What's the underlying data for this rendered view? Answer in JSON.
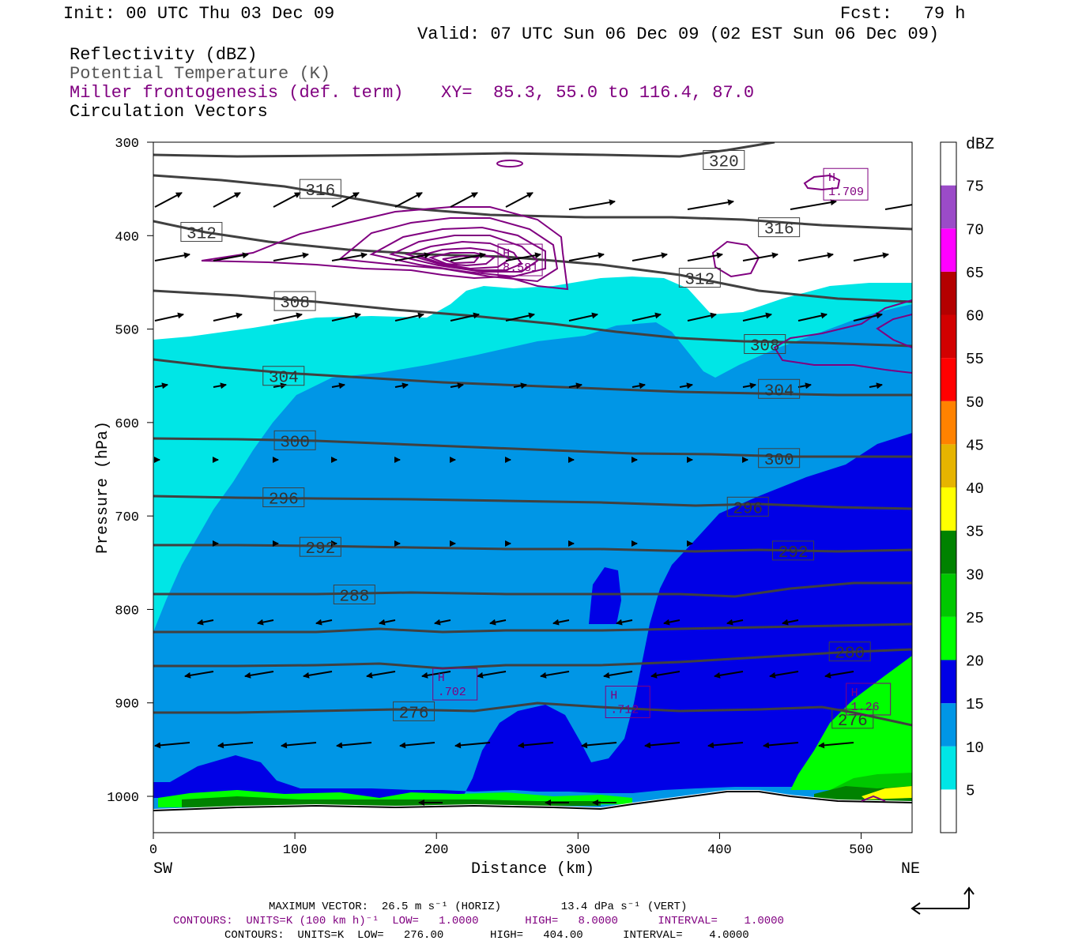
{
  "header": {
    "init": "Init: 00 UTC Thu 03 Dec 09",
    "fcst": "Fcst:   79 h",
    "valid": "Valid: 07 UTC Sun 06 Dec 09 (02 EST Sun 06 Dec 09)",
    "fields": [
      "Reflectivity (dBZ)",
      "Potential Temperature (K)",
      "Miller frontogenesis (def. term)",
      "Circulation Vectors"
    ],
    "xy": "XY=  85.3, 55.0 to 116.4, 87.0"
  },
  "axes": {
    "ylabel": "Pressure (hPa)",
    "xlabel": "Distance (km)",
    "x_left_label": "SW",
    "x_right_label": "NE",
    "yticks": [
      "300",
      "400",
      "500",
      "600",
      "700",
      "800",
      "900",
      "1000"
    ],
    "xticks": [
      "0",
      "100",
      "200",
      "300",
      "400",
      "500"
    ]
  },
  "colorbar": {
    "title": "dBZ",
    "labels": [
      "5",
      "10",
      "15",
      "20",
      "25",
      "30",
      "35",
      "40",
      "45",
      "50",
      "55",
      "60",
      "65",
      "70",
      "75"
    ],
    "colors": [
      "#ffffff",
      "#00e6e6",
      "#0096e6",
      "#0000e6",
      "#00ff00",
      "#00c800",
      "#008200",
      "#ffff00",
      "#e6b400",
      "#ff8200",
      "#ff0000",
      "#d20000",
      "#b40000",
      "#ff00ff",
      "#9b4bc8",
      "#ffffff"
    ]
  },
  "chart_data": {
    "type": "contour",
    "x_unit": "km",
    "y_unit": "hPa",
    "xlim": [
      0,
      536
    ],
    "ylim": [
      300,
      1040
    ],
    "theta_labels": [
      {
        "text": "320",
        "x": 403,
        "p": 319
      },
      {
        "text": "316",
        "x": 118,
        "p": 350
      },
      {
        "text": "316",
        "x": 442,
        "p": 391
      },
      {
        "text": "312",
        "x": 34,
        "p": 396
      },
      {
        "text": "312",
        "x": 386,
        "p": 445
      },
      {
        "text": "308",
        "x": 100,
        "p": 470
      },
      {
        "text": "308",
        "x": 432,
        "p": 516
      },
      {
        "text": "304",
        "x": 92,
        "p": 550
      },
      {
        "text": "304",
        "x": 442,
        "p": 564
      },
      {
        "text": "300",
        "x": 100,
        "p": 619
      },
      {
        "text": "300",
        "x": 442,
        "p": 638
      },
      {
        "text": "296",
        "x": 92,
        "p": 680
      },
      {
        "text": "296",
        "x": 420,
        "p": 690
      },
      {
        "text": "292",
        "x": 118,
        "p": 733
      },
      {
        "text": "292",
        "x": 452,
        "p": 737
      },
      {
        "text": "288",
        "x": 142,
        "p": 784
      },
      {
        "text": "280",
        "x": 492,
        "p": 845
      },
      {
        "text": "276",
        "x": 184,
        "p": 909
      },
      {
        "text": "276",
        "x": 494,
        "p": 917
      }
    ],
    "frontogenesis_maxima": [
      {
        "label": "H",
        "value": "8.581",
        "x": 258,
        "p": 426
      },
      {
        "label": "H",
        "value": "1.709",
        "x": 488,
        "p": 345
      },
      {
        "label": "H",
        "value": ".702",
        "x": 212,
        "p": 880
      },
      {
        "label": "H",
        "value": ".712",
        "x": 334,
        "p": 899
      },
      {
        "label": "H",
        "value": "1.26",
        "x": 504,
        "p": 896
      }
    ]
  },
  "footer": {
    "max_vector": "MAXIMUM VECTOR:  26.5 m s⁻¹ (HORIZ)         13.4 dPa s⁻¹ (VERT)",
    "contours_purple": "CONTOURS:  UNITS=K (100 km h)⁻¹  LOW=   1.0000       HIGH=   8.0000      INTERVAL=    1.0000",
    "contours_black": "CONTOURS:  UNITS=K  LOW=   276.00       HIGH=   404.00      INTERVAL=    4.0000"
  }
}
